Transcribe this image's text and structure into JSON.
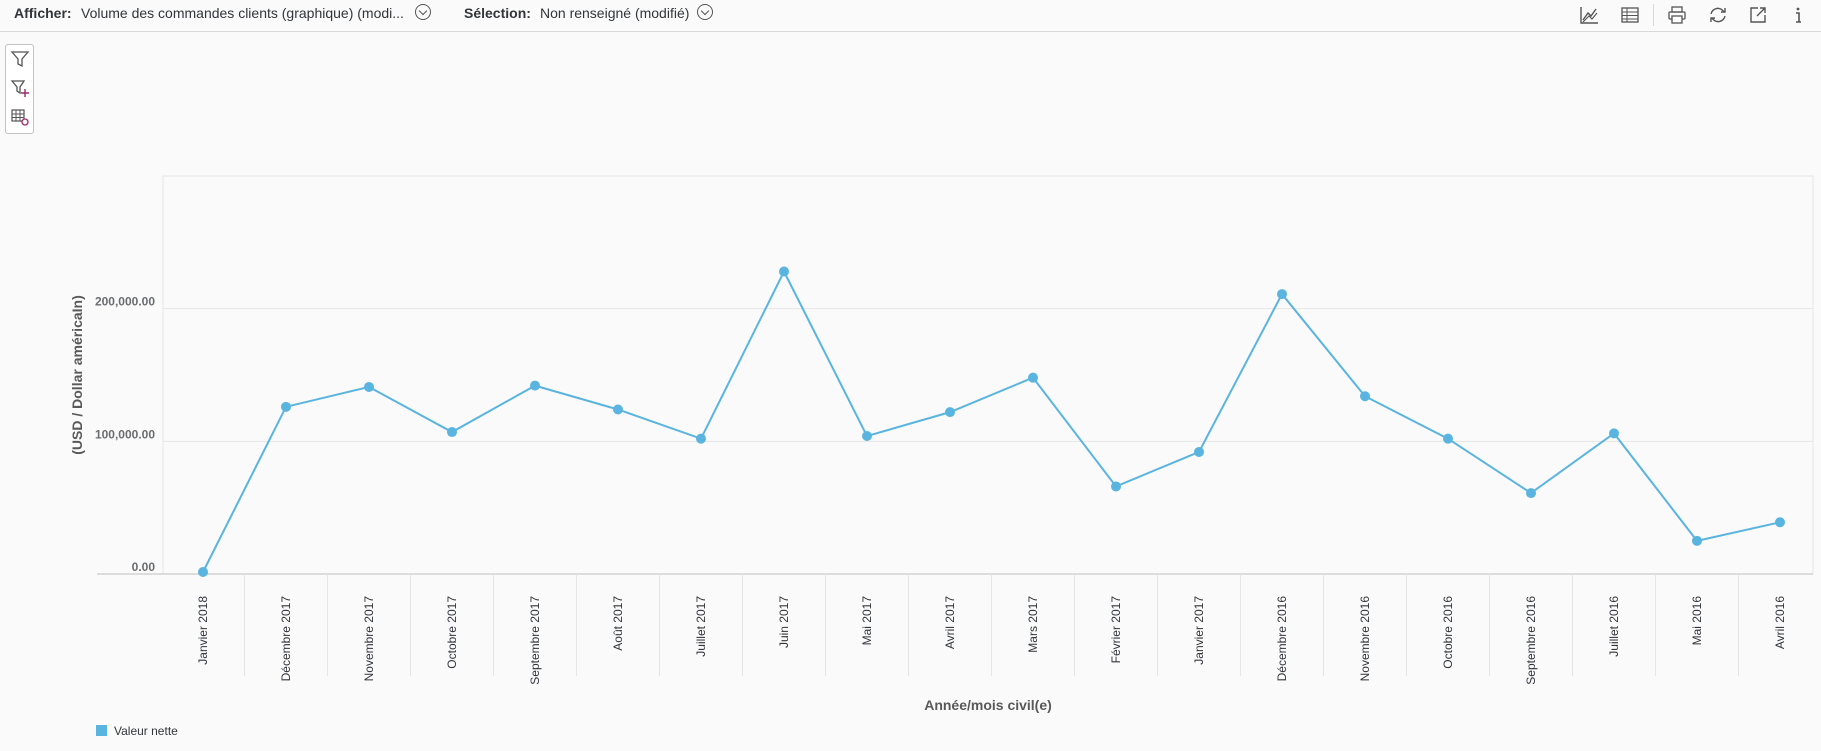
{
  "toolbar": {
    "display_label": "Afficher:",
    "display_value": "Volume des commandes clients (graphique) (modi...",
    "selection_label": "Sélection:",
    "selection_value": "Non renseigné (modifié)",
    "icons": [
      "chart-view-icon",
      "table-view-icon",
      "print-icon",
      "refresh-icon",
      "export-icon",
      "info-icon"
    ]
  },
  "side_panel": {
    "icons": [
      "filter-icon",
      "add-filter-icon",
      "table-settings-icon"
    ]
  },
  "colors": {
    "series": "#5ab4e0",
    "grid": "#e5e5e5",
    "axis": "#c9c9c9"
  },
  "chart_data": {
    "type": "line",
    "title": "",
    "xlabel": "Année/mois civil(e)",
    "ylabel": "(USD / Dollar américaIn)",
    "ylim": [
      0,
      300000
    ],
    "yticks": [
      0,
      100000,
      200000
    ],
    "ytick_labels": [
      "0.00",
      "100,000.00",
      "200,000.00"
    ],
    "grid": true,
    "legend_position": "bottom-left",
    "categories": [
      "Janvier 2018",
      "Décembre 2017",
      "Novembre 2017",
      "Octobre 2017",
      "Septembre 2017",
      "Août 2017",
      "Juillet 2017",
      "Juin 2017",
      "Mai 2017",
      "Avril 2017",
      "Mars 2017",
      "Février 2017",
      "Janvier 2017",
      "Décembre 2016",
      "Novembre 2016",
      "Octobre 2016",
      "Septembre 2016",
      "Juillet 2016",
      "Mai 2016",
      "Avril 2016"
    ],
    "series": [
      {
        "name": "Valeur nette",
        "values": [
          1500,
          126000,
          141000,
          107000,
          142000,
          124000,
          102000,
          228000,
          104000,
          122000,
          148000,
          66000,
          92000,
          211000,
          134000,
          102000,
          61000,
          106000,
          25000,
          39000
        ]
      }
    ]
  }
}
